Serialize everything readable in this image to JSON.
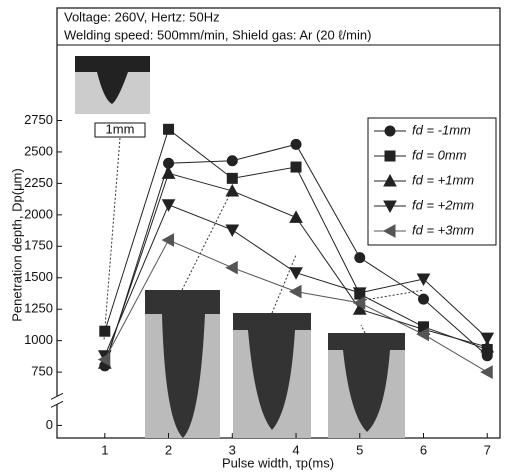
{
  "chart_data": {
    "type": "line",
    "header": [
      "Voltage: 260V, Hertz: 50Hz",
      "Welding speed: 500mm/min, Shield gas: Ar (20 ℓ/min)"
    ],
    "x_label": "Pulse width, τp(ms)",
    "y_label": "Penetration depth, Dp(μm)",
    "annotations": [
      "1mm"
    ],
    "x": [
      1,
      2,
      3,
      4,
      5,
      6,
      7
    ],
    "xlim": [
      0.25,
      7.2
    ],
    "xticks": [
      1,
      2,
      3,
      4,
      5,
      6,
      7
    ],
    "ylim": [
      -100,
      3350
    ],
    "ybreak": [
      100,
      625
    ],
    "yticks": [
      0,
      750,
      1000,
      1250,
      1500,
      1750,
      2000,
      2250,
      2500,
      2750
    ],
    "legend": "upper right",
    "series": [
      {
        "name": "fd = -1mm",
        "color": "#222222",
        "marker": "circle",
        "values": [
          800,
          2410,
          2430,
          2560,
          1660,
          1330,
          880
        ]
      },
      {
        "name": "fd =  0mm",
        "color": "#222222",
        "marker": "square",
        "values": [
          1075,
          2680,
          2290,
          2380,
          1370,
          1110,
          930
        ]
      },
      {
        "name": "fd = +1mm",
        "color": "#222222",
        "marker": "triangle-up",
        "values": [
          820,
          2330,
          2190,
          1980,
          1250,
          1090,
          950
        ]
      },
      {
        "name": "fd = +2mm",
        "color": "#222222",
        "marker": "triangle-down",
        "values": [
          880,
          2080,
          1880,
          1540,
          1380,
          1490,
          1020
        ]
      },
      {
        "name": "fd = +3mm",
        "color": "#555555",
        "marker": "triangle-left",
        "values": [
          850,
          1800,
          1580,
          1390,
          1300,
          1050,
          750
        ]
      }
    ]
  }
}
